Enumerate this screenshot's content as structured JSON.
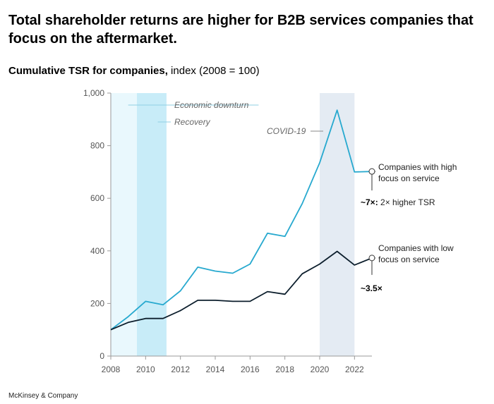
{
  "chart_data": {
    "type": "line",
    "title": "Total shareholder returns are higher for B2B services companies that focus on the aftermarket.",
    "subtitle_bold": "Cumulative TSR for companies,",
    "subtitle_rest": " index (2008 = 100)",
    "xlabel": "",
    "ylabel": "",
    "ylim": [
      0,
      1000
    ],
    "xlim": [
      2008,
      2023
    ],
    "y_ticks": [
      0,
      200,
      400,
      600,
      800,
      1000
    ],
    "y_tick_labels": [
      "0",
      "200",
      "400",
      "600",
      "800",
      "1,000"
    ],
    "x_ticks": [
      2008,
      2010,
      2012,
      2014,
      2016,
      2018,
      2020,
      2022
    ],
    "x_tick_labels": [
      "2008",
      "2010",
      "2012",
      "2014",
      "2016",
      "2018",
      "2020",
      "2022"
    ],
    "series": [
      {
        "name": "Companies with high focus on service",
        "label_lines": [
          "Companies with high",
          "focus on service"
        ],
        "color": "#27a9cf",
        "x": [
          2008,
          2009,
          2010,
          2011,
          2012,
          2013,
          2014,
          2015,
          2016,
          2017,
          2018,
          2019,
          2020,
          2021,
          2022,
          2023
        ],
        "values": [
          100,
          150,
          208,
          195,
          248,
          338,
          323,
          315,
          350,
          467,
          455,
          580,
          735,
          935,
          700,
          702
        ],
        "annotation_bold": "~7×:",
        "annotation_rest": " 2× higher TSR"
      },
      {
        "name": "Companies with low focus on service",
        "label_lines": [
          "Companies with low",
          "focus on service"
        ],
        "color": "#0c1e2c",
        "x": [
          2008,
          2009,
          2010,
          2011,
          2012,
          2013,
          2014,
          2015,
          2016,
          2017,
          2018,
          2019,
          2020,
          2021,
          2022,
          2023
        ],
        "values": [
          100,
          128,
          143,
          143,
          173,
          212,
          212,
          208,
          208,
          245,
          235,
          313,
          350,
          398,
          346,
          373
        ],
        "annotation_bold": "~3.5×",
        "annotation_rest": ""
      }
    ],
    "shaded_periods": [
      {
        "name": "Economic downturn",
        "x_start": 2008,
        "x_end": 2009.5,
        "color": "#e9f8fd"
      },
      {
        "name": "Recovery",
        "x_start": 2009.5,
        "x_end": 2011.2,
        "color": "#c8ecf8"
      },
      {
        "name": "COVID-19",
        "x_start": 2020,
        "x_end": 2022,
        "color": "#e4ebf3"
      }
    ],
    "annotations": {
      "downturn": "Economic downturn",
      "recovery": "Recovery",
      "covid": "COVID-19"
    }
  },
  "source": "McKinsey & Company"
}
